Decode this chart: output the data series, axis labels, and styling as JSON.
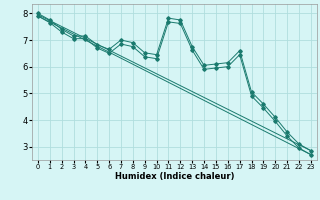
{
  "xlabel": "Humidex (Indice chaleur)",
  "bg_color": "#d6f5f5",
  "grid_color": "#b0dede",
  "line_color": "#1a7a6e",
  "xlim": [
    -0.5,
    23.5
  ],
  "ylim": [
    2.5,
    8.35
  ],
  "x_ticks": [
    0,
    1,
    2,
    3,
    4,
    5,
    6,
    7,
    8,
    9,
    10,
    11,
    12,
    13,
    14,
    15,
    16,
    17,
    18,
    19,
    20,
    21,
    22,
    23
  ],
  "y_ticks": [
    3,
    4,
    5,
    6,
    7,
    8
  ],
  "series1_x": [
    0,
    1,
    2,
    3,
    4,
    5,
    6,
    7,
    8,
    9,
    10,
    11,
    12,
    13,
    14,
    15,
    16,
    17,
    18,
    19,
    20,
    21,
    22,
    23
  ],
  "series1_y": [
    8.0,
    7.75,
    7.4,
    7.15,
    7.15,
    6.82,
    6.65,
    7.0,
    6.9,
    6.52,
    6.45,
    7.82,
    7.75,
    6.75,
    6.05,
    6.1,
    6.15,
    6.6,
    5.05,
    4.6,
    4.1,
    3.55,
    3.1,
    2.85
  ],
  "series2_x": [
    0,
    23
  ],
  "series2_y": [
    7.95,
    2.85
  ],
  "series3_x": [
    0,
    1,
    2,
    3,
    4,
    5,
    6,
    7,
    8,
    9,
    10,
    11,
    12,
    13,
    14,
    15,
    16,
    17,
    18,
    19,
    20,
    21,
    22,
    23
  ],
  "series3_y": [
    7.9,
    7.65,
    7.3,
    7.05,
    7.05,
    6.7,
    6.5,
    6.85,
    6.75,
    6.37,
    6.3,
    7.68,
    7.62,
    6.62,
    5.9,
    5.95,
    6.0,
    6.45,
    4.9,
    4.45,
    3.95,
    3.4,
    2.95,
    2.7
  ],
  "series4_x": [
    0,
    23
  ],
  "series4_y": [
    7.9,
    2.7
  ]
}
